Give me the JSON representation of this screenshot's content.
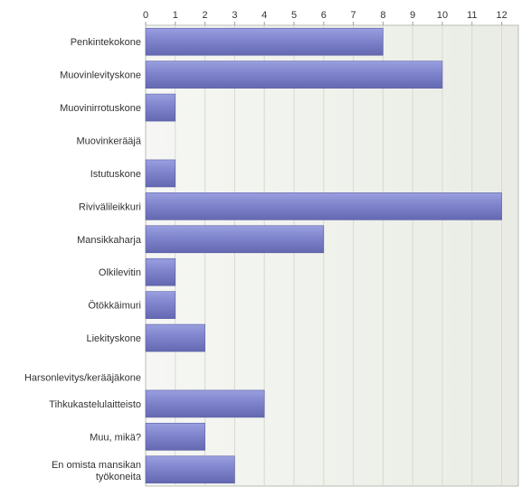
{
  "chart_data": {
    "type": "bar",
    "orientation": "horizontal",
    "categories": [
      "Penkintekokone",
      "Muovinlevityskone",
      "Muovinirrotuskone",
      "Muovinkerääjä",
      "Istutuskone",
      "Riviväli­leikkuri",
      "Mansikkaharja",
      "Olkilevitin",
      "Ötökkäimuri",
      "Liekityskone",
      "Harsonlevitys/kerääjäkone",
      "Tihkukastelulaitteisto",
      "Muu, mikä?",
      "En omista mansikan työkoneita"
    ],
    "values": [
      8,
      10,
      1,
      0,
      1,
      12,
      6,
      1,
      1,
      2,
      0,
      4,
      2,
      3
    ],
    "xlim": [
      0,
      12.5
    ],
    "xticks": [
      "0",
      "1",
      "2",
      "3",
      "4",
      "5",
      "6",
      "7",
      "8",
      "9",
      "10",
      "11",
      "12"
    ],
    "axis_position": "top",
    "grid": true,
    "bar_color": "#7b80c8",
    "plot_background": "#eef0ea"
  }
}
